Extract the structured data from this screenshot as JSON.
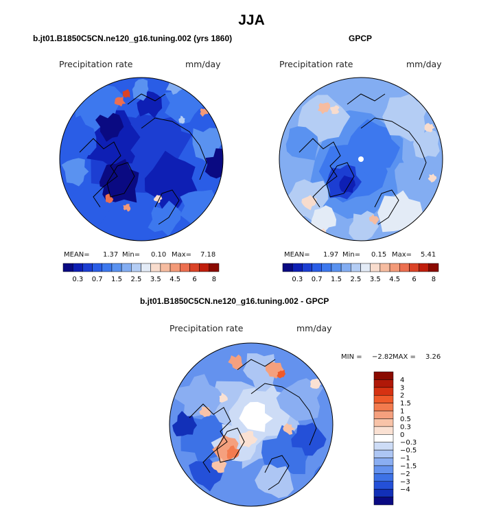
{
  "figure": {
    "title": "JJA"
  },
  "chart_data": [
    {
      "type": "heatmap",
      "projection": "north-polar-stereographic",
      "title": "b.jt01.B1850C5CN.ne120_g16.tuning.002 (yrs 1860)",
      "variable": "Precipitation rate",
      "units": "mm/day",
      "stats": {
        "mean_label": "MEAN=",
        "mean": "1.37",
        "min_label": "Min=",
        "min": "0.10",
        "max_label": "Max=",
        "max": "7.18"
      },
      "colorbar_levels": [
        0.1,
        0.3,
        0.5,
        0.7,
        1.0,
        1.5,
        2.0,
        2.5,
        3.0,
        3.5,
        4.0,
        4.5,
        5.0,
        6.0,
        7.0,
        8.0
      ],
      "colorbar_tick_labels": [
        "0.3",
        "0.7",
        "1.5",
        "2.5",
        "3.5",
        "4.5",
        "6",
        "8"
      ],
      "colors": [
        "#0a0a82",
        "#0e1fb4",
        "#1c3ed2",
        "#2a5de6",
        "#3d78ee",
        "#5a92f0",
        "#83adf2",
        "#b4cdf4",
        "#e3ebf6",
        "#f8dccd",
        "#f6bca0",
        "#f39a78",
        "#ec6f50",
        "#db4327",
        "#c01e0c",
        "#8a0a00"
      ]
    },
    {
      "type": "heatmap",
      "projection": "north-polar-stereographic",
      "title": "GPCP",
      "variable": "Precipitation rate",
      "units": "mm/day",
      "stats": {
        "mean_label": "MEAN=",
        "mean": "1.97",
        "min_label": "Min=",
        "min": "0.15",
        "max_label": "Max=",
        "max": "5.41"
      },
      "colorbar_levels": [
        0.1,
        0.3,
        0.5,
        0.7,
        1.0,
        1.5,
        2.0,
        2.5,
        3.0,
        3.5,
        4.0,
        4.5,
        5.0,
        6.0,
        7.0,
        8.0
      ],
      "colorbar_tick_labels": [
        "0.3",
        "0.7",
        "1.5",
        "2.5",
        "3.5",
        "4.5",
        "6",
        "8"
      ],
      "colors": [
        "#0a0a82",
        "#0e1fb4",
        "#1c3ed2",
        "#2a5de6",
        "#3d78ee",
        "#5a92f0",
        "#83adf2",
        "#b4cdf4",
        "#e3ebf6",
        "#f8dccd",
        "#f6bca0",
        "#f39a78",
        "#ec6f50",
        "#db4327",
        "#c01e0c",
        "#8a0a00"
      ]
    },
    {
      "type": "heatmap",
      "projection": "north-polar-stereographic",
      "title": "b.jt01.B1850C5CN.ne120_g16.tuning.002 - GPCP",
      "variable": "Precipitation rate",
      "units": "mm/day",
      "stats": {
        "min_label": "MIN =",
        "min": "−2.82",
        "max_label": "MAX =",
        "max": "3.26"
      },
      "colorbar_tick_labels": [
        "4",
        "3",
        "2",
        "1.5",
        "1",
        "0.5",
        "0.3",
        "0",
        "−0.3",
        "−0.5",
        "−1",
        "−1.5",
        "−2",
        "−3",
        "−4"
      ],
      "colors": [
        "#8a0a00",
        "#b01808",
        "#d63212",
        "#ef5a2a",
        "#f37b4e",
        "#f5a07e",
        "#f8c3a8",
        "#fae1d3",
        "#ffffff",
        "#cddcf6",
        "#adc6f4",
        "#8aaef2",
        "#6492ee",
        "#3d72e6",
        "#2450d8",
        "#1230b8",
        "#0a0a82"
      ]
    }
  ]
}
